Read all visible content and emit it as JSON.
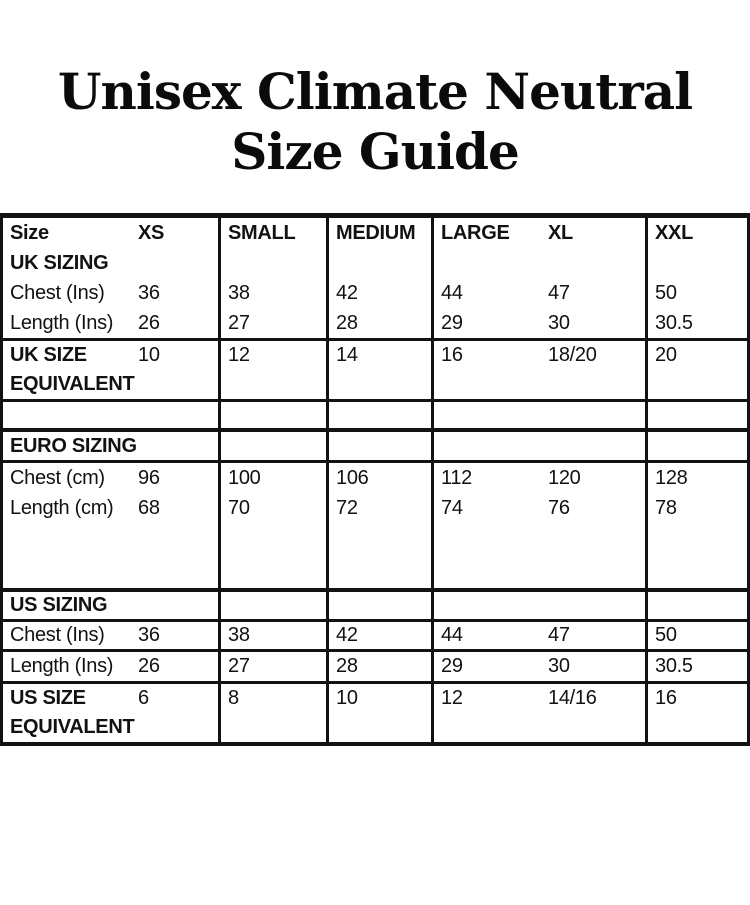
{
  "page": {
    "background": "#ffffff",
    "ink": "#121212"
  },
  "title": {
    "line1": "Unisex Climate Neutral",
    "line2": "Size Guide"
  },
  "table": {
    "header": {
      "size": "Size",
      "xs": "XS",
      "small": "SMALL",
      "medium": "MEDIUM",
      "large": "LARGE",
      "xl": "XL",
      "xxl": "XXL"
    },
    "uk": {
      "section_label": "UK SIZING",
      "chest": {
        "label": "Chest (Ins)",
        "xs": "36",
        "small": "38",
        "medium": "42",
        "large": "44",
        "xl": "47",
        "xxl": "50"
      },
      "length": {
        "label": "Length (Ins)",
        "xs": "26",
        "small": "27",
        "medium": "28",
        "large": "29",
        "xl": "30",
        "xxl": "30.5"
      },
      "equivalent": {
        "label_line1": "UK SIZE",
        "label_line2": "EQUIVALENT",
        "xs": "10",
        "small": "12",
        "medium": "14",
        "large": "16",
        "xl": "18/20",
        "xxl": "20"
      }
    },
    "euro": {
      "section_label": "EURO SIZING",
      "chest": {
        "label": "Chest (cm)",
        "xs": "96",
        "small": "100",
        "medium": "106",
        "large": "112",
        "xl": "120",
        "xxl": "128"
      },
      "length": {
        "label": "Length (cm)",
        "xs": "68",
        "small": "70",
        "medium": "72",
        "large": "74",
        "xl": "76",
        "xxl": "78"
      }
    },
    "us": {
      "section_label": "US SIZING",
      "chest": {
        "label": "Chest (Ins)",
        "xs": "36",
        "small": "38",
        "medium": "42",
        "large": "44",
        "xl": "47",
        "xxl": "50"
      },
      "length": {
        "label": "Length (Ins)",
        "xs": "26",
        "small": "27",
        "medium": "28",
        "large": "29",
        "xl": "30",
        "xxl": "30.5"
      },
      "equivalent": {
        "label_line1": "US SIZE",
        "label_line2": "EQUIVALENT",
        "xs": "6",
        "small": "8",
        "medium": "10",
        "large": "12",
        "xl": "14/16",
        "xxl": "16"
      }
    }
  }
}
